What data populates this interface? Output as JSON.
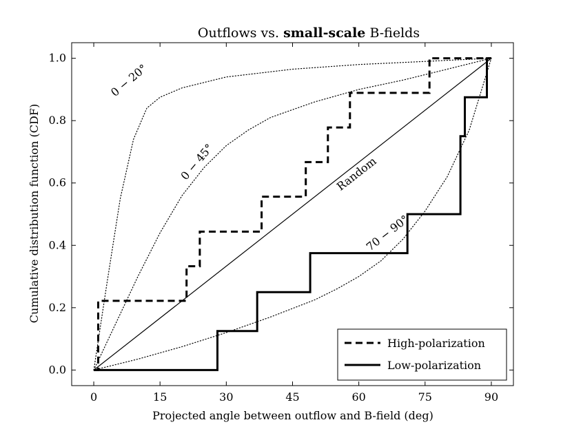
{
  "chart_data": {
    "type": "line",
    "title_prefix": "Outflows vs. ",
    "title_bold": "small-scale",
    "title_suffix": " B-fields",
    "xlabel": "Projected angle between outflow and B-field (deg)",
    "ylabel": "Cumulative distribution function (CDF)",
    "xlim": [
      -5,
      95
    ],
    "ylim": [
      -0.05,
      1.05
    ],
    "xticks": [
      0,
      15,
      30,
      45,
      60,
      75,
      90
    ],
    "yticks": [
      0.0,
      0.2,
      0.4,
      0.6,
      0.8,
      1.0
    ],
    "xtick_labels": [
      "0",
      "15",
      "30",
      "45",
      "60",
      "75",
      "90"
    ],
    "ytick_labels": [
      "0.0",
      "0.2",
      "0.4",
      "0.6",
      "0.8",
      "1.0"
    ],
    "legend_position": "bottom-right",
    "series": [
      {
        "name": "High-polarization",
        "style": "dashed-thick",
        "steps_x": [
          0,
          1,
          21,
          24,
          38,
          48,
          53,
          58,
          76,
          90
        ],
        "steps_y": [
          0,
          0.222,
          0.333,
          0.444,
          0.556,
          0.667,
          0.778,
          0.889,
          1.0,
          1.0
        ]
      },
      {
        "name": "Low-polarization",
        "style": "solid-thick",
        "steps_x": [
          0,
          28,
          37,
          49,
          71,
          83,
          84,
          89,
          90
        ],
        "steps_y": [
          0,
          0.125,
          0.25,
          0.375,
          0.5,
          0.75,
          0.875,
          1.0,
          1.0
        ]
      }
    ],
    "reference_curves": [
      {
        "label": "0 − 20°",
        "style": "dotted",
        "points": [
          [
            0,
            0
          ],
          [
            3,
            0.28
          ],
          [
            6,
            0.55
          ],
          [
            9,
            0.74
          ],
          [
            12,
            0.84
          ],
          [
            15,
            0.875
          ],
          [
            20,
            0.905
          ],
          [
            30,
            0.94
          ],
          [
            45,
            0.965
          ],
          [
            60,
            0.98
          ],
          [
            75,
            0.99
          ],
          [
            90,
            1.0
          ]
        ]
      },
      {
        "label": "0 − 45°",
        "style": "dotted",
        "points": [
          [
            0,
            0
          ],
          [
            5,
            0.15
          ],
          [
            10,
            0.3
          ],
          [
            15,
            0.44
          ],
          [
            20,
            0.56
          ],
          [
            25,
            0.65
          ],
          [
            30,
            0.72
          ],
          [
            35,
            0.77
          ],
          [
            40,
            0.81
          ],
          [
            45,
            0.835
          ],
          [
            50,
            0.86
          ],
          [
            60,
            0.9
          ],
          [
            70,
            0.93
          ],
          [
            80,
            0.965
          ],
          [
            90,
            1.0
          ]
        ]
      },
      {
        "label": "Random",
        "style": "solid-thin",
        "points": [
          [
            0,
            0
          ],
          [
            90,
            1.0
          ]
        ]
      },
      {
        "label": "70 − 90°",
        "style": "dotted",
        "points": [
          [
            0,
            0
          ],
          [
            10,
            0.035
          ],
          [
            20,
            0.075
          ],
          [
            30,
            0.12
          ],
          [
            40,
            0.17
          ],
          [
            50,
            0.225
          ],
          [
            55,
            0.26
          ],
          [
            60,
            0.3
          ],
          [
            65,
            0.35
          ],
          [
            70,
            0.42
          ],
          [
            75,
            0.51
          ],
          [
            80,
            0.62
          ],
          [
            85,
            0.77
          ],
          [
            90,
            1.0
          ]
        ]
      }
    ]
  }
}
